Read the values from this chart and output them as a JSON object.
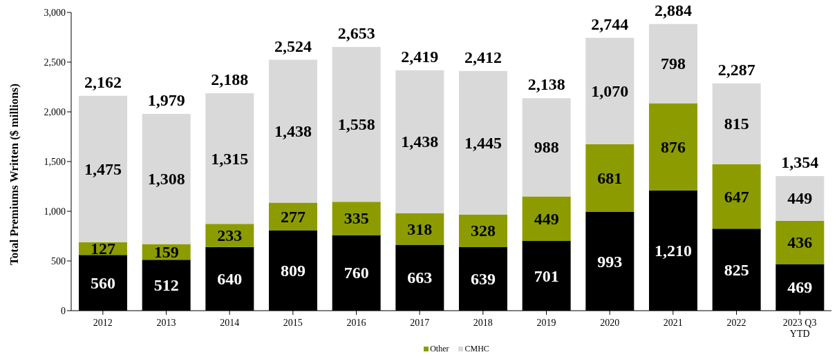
{
  "chart_data": {
    "type": "bar",
    "stacked": true,
    "ylabel": "Total Premiums Written ($ millions)",
    "categories": [
      "2012",
      "2013",
      "2014",
      "2015",
      "2016",
      "2017",
      "2018",
      "2019",
      "2020",
      "2021",
      "2022",
      "2023 Q3 YTD"
    ],
    "series": [
      {
        "color": "#000000",
        "values": [
          560,
          512,
          640,
          809,
          760,
          663,
          639,
          701,
          993,
          1210,
          825,
          469
        ],
        "value_labels": [
          "560",
          "512",
          "640",
          "809",
          "760",
          "663",
          "639",
          "701",
          "993",
          "1,210",
          "825",
          "469"
        ]
      },
      {
        "name": "Other",
        "color": "#8c9c00",
        "values": [
          127,
          159,
          233,
          277,
          335,
          318,
          328,
          449,
          681,
          876,
          647,
          436
        ],
        "value_labels": [
          "127",
          "159",
          "233",
          "277",
          "335",
          "318",
          "328",
          "449",
          "681",
          "876",
          "647",
          "436"
        ]
      },
      {
        "name": "CMHC",
        "color": "#d9d9d9",
        "values": [
          1475,
          1308,
          1315,
          1438,
          1558,
          1438,
          1445,
          988,
          1070,
          798,
          815,
          449
        ],
        "value_labels": [
          "1,475",
          "1,308",
          "1,315",
          "1,438",
          "1,558",
          "1,438",
          "1,445",
          "988",
          "1,070",
          "798",
          "815",
          "449"
        ]
      }
    ],
    "totals": [
      "2,162",
      "1,979",
      "2,188",
      "2,524",
      "2,653",
      "2,419",
      "2,412",
      "2,138",
      "2,744",
      "2,884",
      "2,287",
      "1,354"
    ],
    "ylim": [
      0,
      3000
    ],
    "yticks": [
      0,
      500,
      {
        "value": 1000,
        "label": "1,000"
      },
      {
        "value": 1500,
        "label": "1,500"
      },
      {
        "value": 2000,
        "label": "2,000"
      },
      {
        "value": 2500,
        "label": "2,500"
      },
      {
        "value": 3000,
        "label": "3,000"
      }
    ],
    "grid": false,
    "legend": "bottom"
  }
}
